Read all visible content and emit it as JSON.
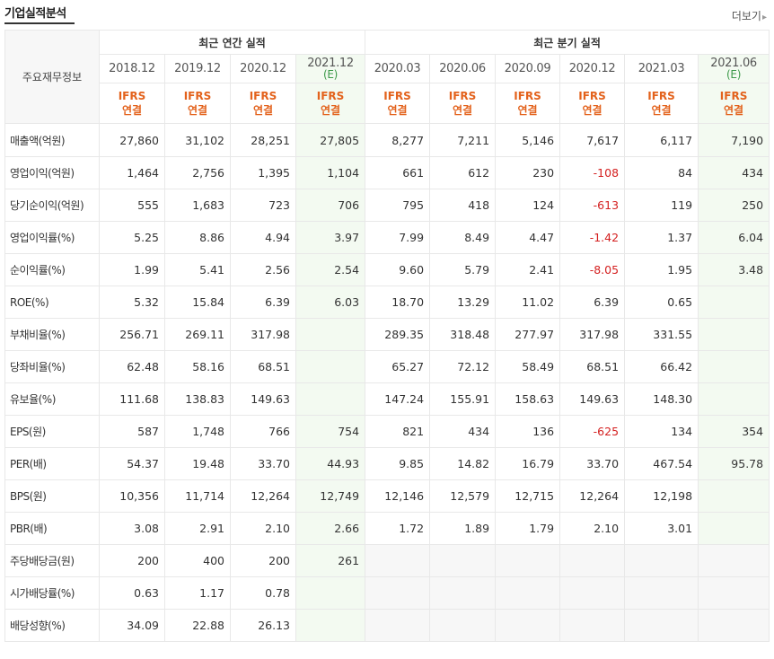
{
  "header": {
    "title": "기업실적분석",
    "more_label": "더보기",
    "more_icon": "triangle-right"
  },
  "table": {
    "corner_label": "주요재무정보",
    "annual_group": "최근 연간 실적",
    "quarter_group": "최근 분기 실적",
    "periods": [
      {
        "label": "2018.12",
        "est": ""
      },
      {
        "label": "2019.12",
        "est": ""
      },
      {
        "label": "2020.12",
        "est": ""
      },
      {
        "label": "2021.12",
        "est": "(E)"
      },
      {
        "label": "2020.03",
        "est": ""
      },
      {
        "label": "2020.06",
        "est": ""
      },
      {
        "label": "2020.09",
        "est": ""
      },
      {
        "label": "2020.12",
        "est": ""
      },
      {
        "label": "2021.03",
        "est": ""
      },
      {
        "label": "2021.06",
        "est": "(E)"
      }
    ],
    "type_top": "IFRS",
    "type_bottom": "연결",
    "rows": [
      {
        "label": "매출액(억원)",
        "values": [
          "27,860",
          "31,102",
          "28,251",
          "27,805",
          "8,277",
          "7,211",
          "5,146",
          "7,617",
          "6,117",
          "7,190"
        ]
      },
      {
        "label": "영업이익(억원)",
        "values": [
          "1,464",
          "2,756",
          "1,395",
          "1,104",
          "661",
          "612",
          "230",
          "-108",
          "84",
          "434"
        ]
      },
      {
        "label": "당기순이익(억원)",
        "values": [
          "555",
          "1,683",
          "723",
          "706",
          "795",
          "418",
          "124",
          "-613",
          "119",
          "250"
        ]
      },
      {
        "label": "영업이익률(%)",
        "values": [
          "5.25",
          "8.86",
          "4.94",
          "3.97",
          "7.99",
          "8.49",
          "4.47",
          "-1.42",
          "1.37",
          "6.04"
        ]
      },
      {
        "label": "순이익률(%)",
        "values": [
          "1.99",
          "5.41",
          "2.56",
          "2.54",
          "9.60",
          "5.79",
          "2.41",
          "-8.05",
          "1.95",
          "3.48"
        ]
      },
      {
        "label": "ROE(%)",
        "values": [
          "5.32",
          "15.84",
          "6.39",
          "6.03",
          "18.70",
          "13.29",
          "11.02",
          "6.39",
          "0.65",
          ""
        ]
      },
      {
        "label": "부채비율(%)",
        "values": [
          "256.71",
          "269.11",
          "317.98",
          "",
          "289.35",
          "318.48",
          "277.97",
          "317.98",
          "331.55",
          ""
        ]
      },
      {
        "label": "당좌비율(%)",
        "values": [
          "62.48",
          "58.16",
          "68.51",
          "",
          "65.27",
          "72.12",
          "58.49",
          "68.51",
          "66.42",
          ""
        ]
      },
      {
        "label": "유보율(%)",
        "values": [
          "111.68",
          "138.83",
          "149.63",
          "",
          "147.24",
          "155.91",
          "158.63",
          "149.63",
          "148.30",
          ""
        ]
      },
      {
        "label": "EPS(원)",
        "values": [
          "587",
          "1,748",
          "766",
          "754",
          "821",
          "434",
          "136",
          "-625",
          "134",
          "354"
        ]
      },
      {
        "label": "PER(배)",
        "values": [
          "54.37",
          "19.48",
          "33.70",
          "44.93",
          "9.85",
          "14.82",
          "16.79",
          "33.70",
          "467.54",
          "95.78"
        ]
      },
      {
        "label": "BPS(원)",
        "values": [
          "10,356",
          "11,714",
          "12,264",
          "12,749",
          "12,146",
          "12,579",
          "12,715",
          "12,264",
          "12,198",
          ""
        ]
      },
      {
        "label": "PBR(배)",
        "values": [
          "3.08",
          "2.91",
          "2.10",
          "2.66",
          "1.72",
          "1.89",
          "1.79",
          "2.10",
          "3.01",
          ""
        ]
      },
      {
        "label": "주당배당금(원)",
        "values": [
          "200",
          "400",
          "200",
          "261",
          "",
          "",
          "",
          "",
          "",
          ""
        ]
      },
      {
        "label": "시가배당률(%)",
        "values": [
          "0.63",
          "1.17",
          "0.78",
          "",
          "",
          "",
          "",
          "",
          "",
          ""
        ]
      },
      {
        "label": "배당성향(%)",
        "values": [
          "34.09",
          "22.88",
          "26.13",
          "",
          "",
          "",
          "",
          "",
          "",
          ""
        ]
      }
    ]
  },
  "colors": {
    "negative": "#d42020",
    "ifrs": "#e3621c",
    "estimate_text": "#3d9a4a",
    "estimate_bg": "#f3faf1"
  }
}
